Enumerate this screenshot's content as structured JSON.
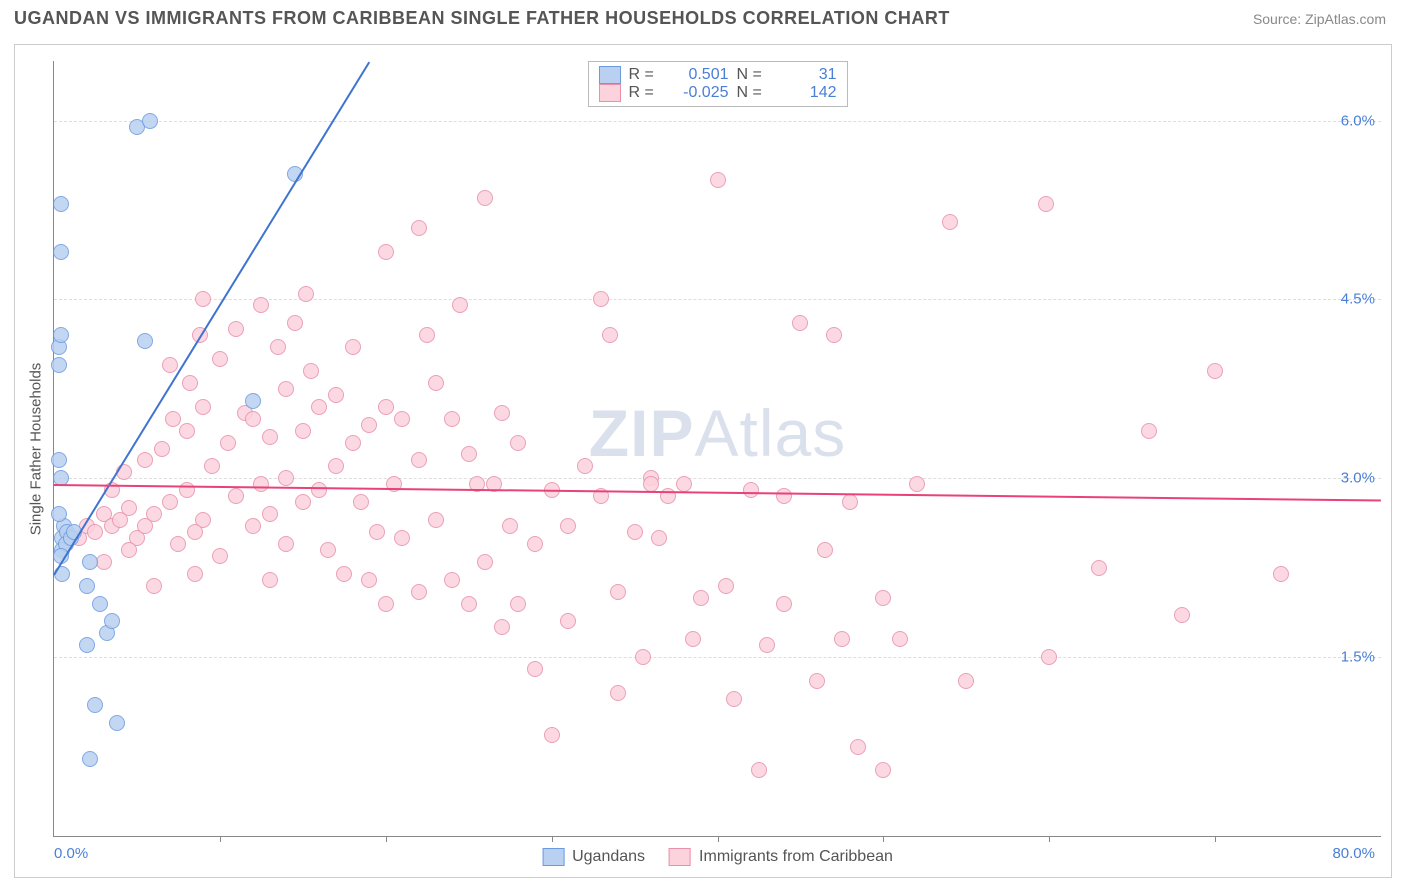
{
  "header": {
    "title": "UGANDAN VS IMMIGRANTS FROM CARIBBEAN SINGLE FATHER HOUSEHOLDS CORRELATION CHART",
    "source_prefix": "Source: ",
    "source_name": "ZipAtlas.com"
  },
  "chart": {
    "ylabel": "Single Father Households",
    "xlim": [
      0,
      80
    ],
    "ylim": [
      0,
      6.5
    ],
    "yticks": [
      {
        "v": 1.5,
        "label": "1.5%"
      },
      {
        "v": 3.0,
        "label": "3.0%"
      },
      {
        "v": 4.5,
        "label": "4.5%"
      },
      {
        "v": 6.0,
        "label": "6.0%"
      }
    ],
    "xtick_left": "0.0%",
    "xtick_right": "80.0%",
    "x_minor_ticks": [
      10,
      20,
      30,
      40,
      50,
      60,
      70
    ],
    "tick_color": "#4a7fd8",
    "grid_color": "#dddddd",
    "series": [
      {
        "name": "Ugandans",
        "marker_fill": "#b9d0f0",
        "marker_stroke": "#6a9be0",
        "marker_size": 16,
        "trend": {
          "x1": 0,
          "y1": 2.2,
          "x2": 19,
          "y2": 6.5,
          "color": "#3e74cf",
          "width": 2
        },
        "legend_fill": "#b9d0f0",
        "legend_stroke": "#6a9be0",
        "R": "0.501",
        "N": "31",
        "points": [
          [
            0.5,
            2.5
          ],
          [
            0.6,
            2.6
          ],
          [
            0.8,
            2.55
          ],
          [
            0.5,
            2.4
          ],
          [
            0.7,
            2.45
          ],
          [
            1.0,
            2.5
          ],
          [
            1.2,
            2.55
          ],
          [
            0.3,
            3.15
          ],
          [
            0.4,
            3.0
          ],
          [
            0.3,
            2.7
          ],
          [
            0.4,
            2.35
          ],
          [
            0.5,
            2.2
          ],
          [
            2.0,
            2.1
          ],
          [
            2.2,
            2.3
          ],
          [
            2.8,
            1.95
          ],
          [
            3.2,
            1.7
          ],
          [
            3.5,
            1.8
          ],
          [
            2.0,
            1.6
          ],
          [
            2.5,
            1.1
          ],
          [
            3.8,
            0.95
          ],
          [
            2.2,
            0.65
          ],
          [
            0.3,
            3.95
          ],
          [
            0.3,
            4.1
          ],
          [
            0.4,
            4.2
          ],
          [
            0.4,
            4.9
          ],
          [
            0.4,
            5.3
          ],
          [
            5.0,
            5.95
          ],
          [
            5.8,
            6.0
          ],
          [
            14.5,
            5.55
          ],
          [
            12.0,
            3.65
          ],
          [
            5.5,
            4.15
          ]
        ]
      },
      {
        "name": "Immigrants from Caribbean",
        "marker_fill": "#fcd2dd",
        "marker_stroke": "#e890ac",
        "marker_size": 16,
        "trend": {
          "x1": 0,
          "y1": 2.95,
          "x2": 80,
          "y2": 2.82,
          "color": "#e8427a",
          "width": 2
        },
        "legend_fill": "#fcd2dd",
        "legend_stroke": "#e890ac",
        "R": "-0.025",
        "N": "142",
        "points": [
          [
            1.5,
            2.5
          ],
          [
            2.0,
            2.6
          ],
          [
            2.5,
            2.55
          ],
          [
            3.0,
            2.7
          ],
          [
            3.5,
            2.6
          ],
          [
            4.0,
            2.65
          ],
          [
            4.5,
            2.75
          ],
          [
            5.0,
            2.5
          ],
          [
            5.5,
            2.6
          ],
          [
            3.0,
            2.3
          ],
          [
            4.5,
            2.4
          ],
          [
            6.0,
            2.7
          ],
          [
            7.0,
            2.8
          ],
          [
            8.0,
            2.9
          ],
          [
            9.0,
            2.65
          ],
          [
            7.5,
            2.45
          ],
          [
            8.5,
            2.55
          ],
          [
            6.0,
            2.1
          ],
          [
            8.5,
            2.2
          ],
          [
            10.0,
            2.35
          ],
          [
            11.0,
            2.85
          ],
          [
            12.0,
            2.6
          ],
          [
            12.5,
            2.95
          ],
          [
            13.0,
            2.7
          ],
          [
            14.0,
            2.45
          ],
          [
            9.5,
            3.1
          ],
          [
            10.5,
            3.3
          ],
          [
            11.5,
            3.55
          ],
          [
            12.0,
            3.5
          ],
          [
            13.0,
            3.35
          ],
          [
            14.0,
            3.75
          ],
          [
            15.0,
            3.4
          ],
          [
            16.0,
            3.6
          ],
          [
            8.0,
            3.4
          ],
          [
            9.0,
            3.6
          ],
          [
            10.0,
            4.0
          ],
          [
            11.0,
            4.25
          ],
          [
            12.5,
            4.45
          ],
          [
            9.0,
            4.5
          ],
          [
            14.0,
            3.0
          ],
          [
            15.0,
            2.8
          ],
          [
            16.0,
            2.9
          ],
          [
            17.0,
            3.1
          ],
          [
            18.0,
            3.3
          ],
          [
            19.0,
            3.45
          ],
          [
            20.0,
            3.6
          ],
          [
            16.5,
            2.4
          ],
          [
            17.5,
            2.2
          ],
          [
            18.5,
            2.8
          ],
          [
            19.5,
            2.55
          ],
          [
            20.5,
            2.95
          ],
          [
            21.0,
            3.5
          ],
          [
            22.0,
            3.15
          ],
          [
            22.0,
            5.1
          ],
          [
            20.0,
            4.9
          ],
          [
            22.5,
            4.2
          ],
          [
            23.0,
            3.8
          ],
          [
            24.0,
            3.5
          ],
          [
            25.0,
            3.2
          ],
          [
            25.5,
            2.95
          ],
          [
            20.0,
            1.95
          ],
          [
            22.0,
            2.05
          ],
          [
            24.0,
            2.15
          ],
          [
            26.0,
            2.3
          ],
          [
            26.5,
            2.95
          ],
          [
            27.0,
            3.55
          ],
          [
            28.0,
            3.3
          ],
          [
            26.0,
            5.35
          ],
          [
            27.0,
            1.75
          ],
          [
            28.0,
            1.95
          ],
          [
            29.0,
            2.45
          ],
          [
            30.0,
            2.9
          ],
          [
            31.0,
            2.6
          ],
          [
            30.0,
            0.85
          ],
          [
            32.0,
            3.1
          ],
          [
            33.0,
            4.5
          ],
          [
            33.5,
            4.2
          ],
          [
            34.0,
            2.05
          ],
          [
            35.0,
            2.55
          ],
          [
            35.5,
            1.5
          ],
          [
            36.0,
            3.0
          ],
          [
            33.0,
            2.85
          ],
          [
            34.0,
            1.2
          ],
          [
            36.0,
            2.95
          ],
          [
            37.0,
            2.85
          ],
          [
            38.0,
            2.95
          ],
          [
            38.5,
            1.65
          ],
          [
            39.0,
            2.0
          ],
          [
            40.0,
            5.5
          ],
          [
            40.5,
            2.1
          ],
          [
            41.0,
            1.15
          ],
          [
            42.0,
            2.9
          ],
          [
            42.5,
            0.55
          ],
          [
            44.0,
            2.85
          ],
          [
            44.0,
            1.95
          ],
          [
            45.0,
            4.3
          ],
          [
            46.0,
            1.3
          ],
          [
            47.0,
            4.2
          ],
          [
            47.5,
            1.65
          ],
          [
            48.0,
            2.8
          ],
          [
            48.5,
            0.75
          ],
          [
            50.0,
            2.0
          ],
          [
            51.0,
            1.65
          ],
          [
            50.0,
            0.55
          ],
          [
            52.0,
            2.95
          ],
          [
            54.0,
            5.15
          ],
          [
            55.0,
            1.3
          ],
          [
            59.8,
            5.3
          ],
          [
            60.0,
            1.5
          ],
          [
            63.0,
            2.25
          ],
          [
            66.0,
            3.4
          ],
          [
            68.0,
            1.85
          ],
          [
            70.0,
            3.9
          ],
          [
            74.0,
            2.2
          ],
          [
            3.5,
            2.9
          ],
          [
            4.2,
            3.05
          ],
          [
            5.5,
            3.15
          ],
          [
            6.5,
            3.25
          ],
          [
            7.2,
            3.5
          ],
          [
            8.2,
            3.8
          ],
          [
            13.5,
            4.1
          ],
          [
            14.5,
            4.3
          ],
          [
            15.5,
            3.9
          ],
          [
            17.0,
            3.7
          ],
          [
            18.0,
            4.1
          ],
          [
            19.0,
            2.15
          ],
          [
            21.0,
            2.5
          ],
          [
            23.0,
            2.65
          ],
          [
            25.0,
            1.95
          ],
          [
            27.5,
            2.6
          ],
          [
            29.0,
            1.4
          ],
          [
            31.0,
            1.8
          ],
          [
            36.5,
            2.5
          ],
          [
            43.0,
            1.6
          ],
          [
            46.5,
            2.4
          ],
          [
            13.0,
            2.15
          ],
          [
            7.0,
            3.95
          ],
          [
            8.8,
            4.2
          ],
          [
            15.2,
            4.55
          ],
          [
            24.5,
            4.45
          ]
        ]
      }
    ],
    "watermark": "ZIPAtlas"
  }
}
